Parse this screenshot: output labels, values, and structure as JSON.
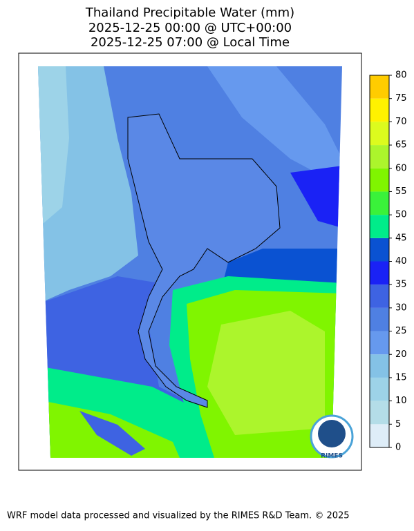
{
  "title": [
    "Thailand Precipitable Water (mm)",
    "2025-12-25 00:00 @ UTC+00:00",
    "2025-12-25 07:00 @ Local Time"
  ],
  "colorbar": {
    "ticks": [
      0,
      5,
      10,
      15,
      20,
      25,
      30,
      35,
      40,
      45,
      50,
      55,
      60,
      65,
      70,
      75,
      80
    ],
    "colors": [
      "#deedf8",
      "#b4dde8",
      "#9dd3e8",
      "#84c2e6",
      "#6699ee",
      "#4f80e2",
      "#3e63e2",
      "#1a22f5",
      "#0a52d2",
      "#00ec8a",
      "#3af23a",
      "#80f500",
      "#acf52c",
      "#dcfb1e",
      "#fff200",
      "#ffcc00"
    ]
  },
  "logo": "RIMES",
  "footer": "WRF model data processed and visualized by the RIMES R&D Team. © 2025"
}
